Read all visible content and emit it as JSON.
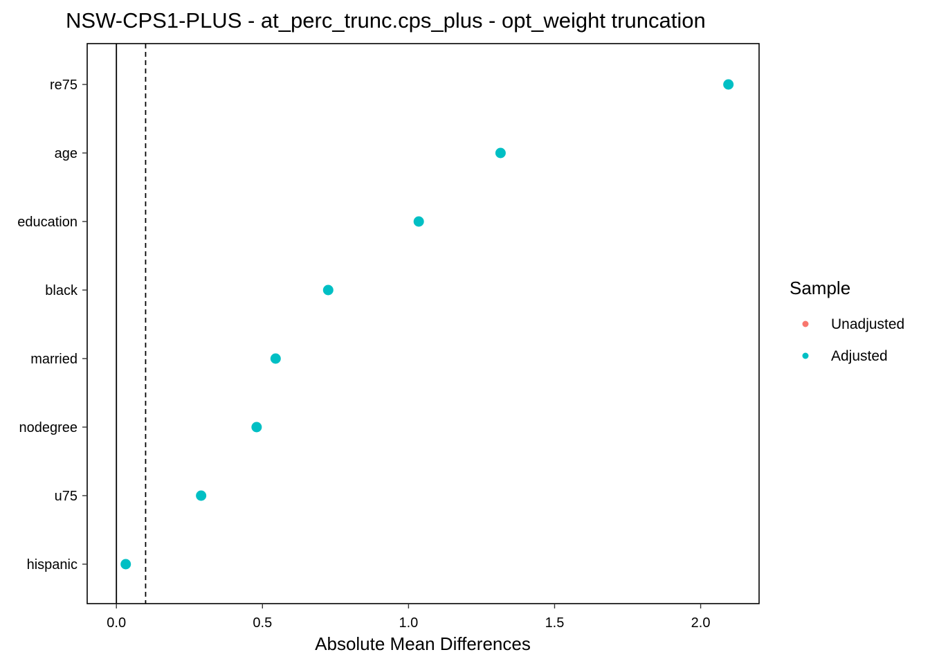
{
  "chart_data": {
    "type": "scatter",
    "title": "NSW-CPS1-PLUS - at_perc_trunc.cps_plus - opt_weight truncation",
    "xlabel": "Absolute Mean Differences",
    "ylabel": "",
    "xlim": [
      -0.1,
      2.2
    ],
    "xticks": [
      0.0,
      0.5,
      1.0,
      1.5,
      2.0
    ],
    "xtick_labels": [
      "0.0",
      "0.5",
      "1.0",
      "1.5",
      "2.0"
    ],
    "reference_lines": [
      {
        "x": 0.0,
        "style": "solid"
      },
      {
        "x": 0.1,
        "style": "dashed"
      }
    ],
    "categories": [
      "re75",
      "age",
      "education",
      "black",
      "married",
      "nodegree",
      "u75",
      "hispanic"
    ],
    "series": [
      {
        "name": "Unadjusted",
        "color": "#F8766D",
        "values": [
          null,
          null,
          null,
          null,
          null,
          null,
          null,
          null
        ]
      },
      {
        "name": "Adjusted",
        "color": "#00BFC4",
        "values": [
          2.095,
          1.315,
          1.035,
          0.725,
          0.545,
          0.48,
          0.29,
          0.032
        ]
      }
    ],
    "legend": {
      "title": "Sample",
      "position": "right",
      "entries": [
        "Unadjusted",
        "Adjusted"
      ]
    },
    "grid": false
  }
}
